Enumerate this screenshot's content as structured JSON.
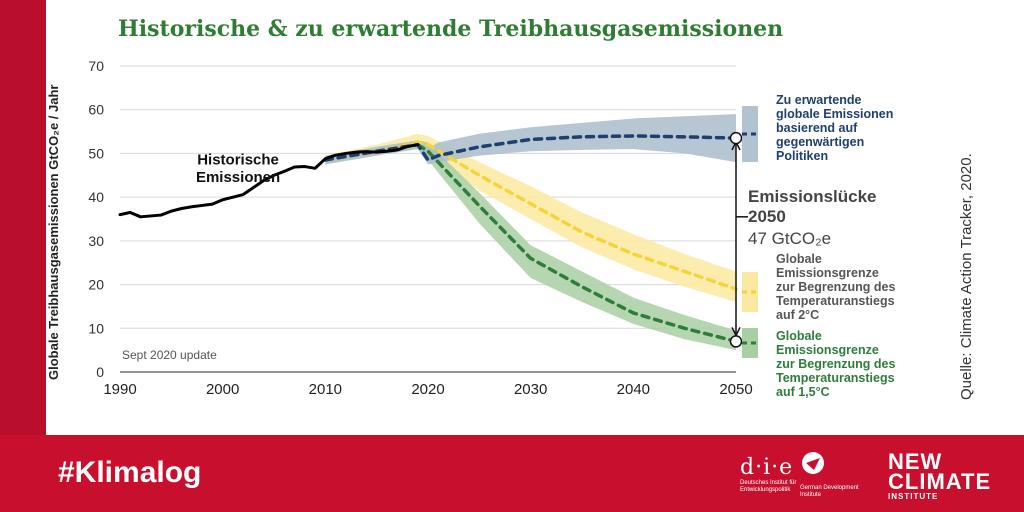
{
  "title": "Historische & zu erwartende Treibhausgasemissionen",
  "ylabel": "Globale Treibhausgasemissionen GtCO₂e / Jahr",
  "source": "Quelle: Climate Action Tracker, 2020.",
  "footer": {
    "hashtag": "#Klimalog",
    "die_mark": "d·i·e",
    "die_text": "Deutsches Institut für Entwicklungspolitik",
    "gdi_text": "German Development Institute",
    "nc_line1": "NEW",
    "nc_line2": "CLIMATE",
    "nc_line3": "INSTITUTE"
  },
  "colors": {
    "historical": "#000000",
    "current_policy": "#1f3f6e",
    "current_policy_band": "#a9bccb",
    "two_degree": "#f5d43a",
    "two_degree_band": "#fbe9a0",
    "one_five": "#2e7d3a",
    "one_five_band": "#a8cfa3",
    "title": "#2e7d32",
    "frame": "#c8102e"
  },
  "chart_data": {
    "type": "line",
    "title": "Historische & zu erwartende Treibhausgasemissionen",
    "xlabel": "",
    "ylabel": "Globale Treibhausgasemissionen GtCO₂e / Jahr",
    "xlim": [
      1990,
      2050
    ],
    "ylim": [
      0,
      70
    ],
    "xticks": [
      1990,
      2000,
      2010,
      2020,
      2030,
      2040,
      2050
    ],
    "yticks": [
      0,
      10,
      20,
      30,
      40,
      50,
      60,
      70
    ],
    "grid": true,
    "annotation_update": "Sept 2020 update",
    "series": [
      {
        "name": "Historische Emissionen",
        "key": "historical",
        "style": "solid",
        "x": [
          1990,
          1991,
          1992,
          1993,
          1994,
          1995,
          1996,
          1997,
          1998,
          1999,
          2000,
          2001,
          2002,
          2003,
          2004,
          2005,
          2006,
          2007,
          2008,
          2009,
          2010,
          2011,
          2012,
          2013,
          2014,
          2015,
          2016,
          2017,
          2018,
          2019
        ],
        "y": [
          36,
          36.5,
          35.5,
          35.7,
          35.9,
          36.8,
          37.4,
          37.8,
          38.1,
          38.4,
          39.4,
          40.0,
          40.6,
          42.2,
          43.8,
          45.0,
          45.9,
          46.9,
          47.0,
          46.6,
          48.8,
          49.6,
          50.0,
          50.3,
          50.4,
          50.3,
          50.5,
          50.8,
          51.6,
          52.0
        ]
      },
      {
        "name": "Zu erwartende globale Emissionen basierend auf gegenwärtigen Politiken",
        "key": "current_policy",
        "style": "dashed",
        "x": [
          2010,
          2015,
          2019,
          2020,
          2021,
          2025,
          2030,
          2035,
          2040,
          2045,
          2050
        ],
        "y": [
          48.5,
          50.5,
          52.0,
          48.5,
          49.5,
          51.5,
          53.2,
          53.8,
          54.0,
          53.8,
          53.5
        ],
        "band_upper": [
          49.5,
          51.5,
          53.0,
          51.0,
          52.5,
          54.5,
          56.0,
          57.0,
          58.0,
          58.5,
          59.0
        ],
        "band_lower": [
          47.5,
          49.5,
          51.0,
          47.5,
          48.0,
          49.5,
          50.5,
          50.8,
          51.0,
          50.0,
          48.0
        ]
      },
      {
        "name": "Globale Emissionsgrenze zur Begrenzung des Temperaturanstiegs auf 2°C",
        "key": "two_degree",
        "style": "dashed",
        "x": [
          2010,
          2015,
          2019,
          2020,
          2025,
          2030,
          2035,
          2040,
          2045,
          2050
        ],
        "y": [
          48.5,
          50.5,
          52.5,
          52.0,
          45.0,
          38.5,
          32.0,
          27.0,
          23.0,
          19.0
        ],
        "band_upper": [
          49.5,
          52.0,
          54.5,
          54.0,
          48.0,
          42.5,
          36.5,
          31.5,
          27.0,
          23.0
        ],
        "band_lower": [
          47.5,
          49.5,
          51.0,
          50.0,
          41.5,
          35.0,
          28.5,
          23.5,
          19.5,
          16.0
        ]
      },
      {
        "name": "Globale Emissionsgrenze zur Begrenzung des Temperaturanstiegs auf 1,5°C",
        "key": "one_five",
        "style": "dashed",
        "x": [
          2019,
          2020,
          2025,
          2030,
          2035,
          2040,
          2045,
          2050
        ],
        "y": [
          52.0,
          50.5,
          38.0,
          26.0,
          19.5,
          13.5,
          10.0,
          7.0
        ],
        "band_upper": [
          53.0,
          52.5,
          41.0,
          29.0,
          23.0,
          17.0,
          13.0,
          9.5
        ],
        "band_lower": [
          51.0,
          48.5,
          34.0,
          21.5,
          16.0,
          11.0,
          7.5,
          5.0
        ]
      }
    ],
    "gap": {
      "title": "Emissionslücke",
      "year": "2050",
      "value": "47 GtCO₂e",
      "from": 7,
      "to": 54
    },
    "labels": {
      "historical": "Historische Emissionen",
      "current_policy": [
        "Zu erwartende",
        "globale Emissionen",
        "basierend auf",
        "gegenwärtigen",
        "Politiken"
      ],
      "two_degree": [
        "Globale",
        "Emissionsgrenze",
        "zur Begrenzung des",
        "Temperaturanstiegs",
        "auf 2°C"
      ],
      "one_five": [
        "Globale",
        "Emissionsgrenze",
        "zur Begrenzung des",
        "Temperaturanstiegs",
        "auf 1,5°C"
      ]
    }
  }
}
